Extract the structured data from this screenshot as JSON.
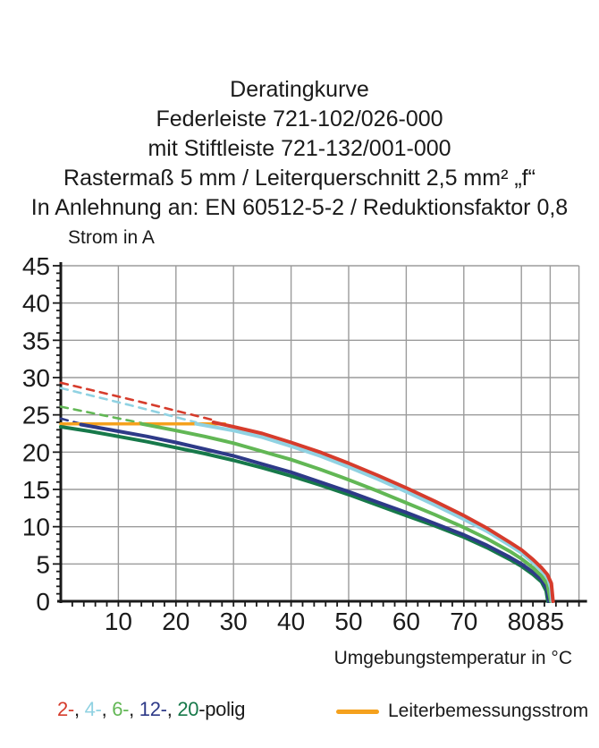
{
  "header": {
    "lines": [
      "Deratingkurve",
      "Federleiste 721-102/026-000",
      "mit Stiftleiste 721-132/001-000",
      "Rastermaß 5 mm / Leiterquerschnitt 2,5 mm² „f“",
      "In Anlehnung an: EN 60512-5-2 / Reduktionsfaktor 0,8"
    ]
  },
  "chart_data": {
    "type": "line",
    "title": "Deratingkurve",
    "xlabel": "Umgebungstemperatur in °C",
    "ylabel": "Strom in A",
    "xlim": [
      0,
      90
    ],
    "ylim": [
      0,
      45
    ],
    "x_ticks": [
      10,
      20,
      30,
      40,
      50,
      60,
      70,
      80,
      85
    ],
    "y_ticks": [
      0,
      5,
      10,
      15,
      20,
      25,
      30,
      35,
      40,
      45
    ],
    "x_gridlines": [
      10,
      20,
      30,
      40,
      50,
      60,
      70,
      80,
      85,
      90
    ],
    "y_gridlines": [
      5,
      10,
      15,
      20,
      25,
      30,
      35,
      40,
      45
    ],
    "grid_color": "#9b9b9b",
    "axis_color": "#1a1a1a",
    "grid_on": true,
    "legend_position": "bottom",
    "series": [
      {
        "name": "2-polig-dashed",
        "color": "#d63c2c",
        "dashed": true,
        "width": 2.6,
        "points": [
          [
            0,
            29.3
          ],
          [
            13,
            26.9
          ],
          [
            27,
            24.2
          ]
        ]
      },
      {
        "name": "4-polig-dashed",
        "color": "#90d2e2",
        "dashed": true,
        "width": 2.6,
        "points": [
          [
            0,
            28.6
          ],
          [
            12,
            26.3
          ],
          [
            23.5,
            24.0
          ]
        ]
      },
      {
        "name": "6-polig-dashed",
        "color": "#62b755",
        "dashed": true,
        "width": 2.6,
        "points": [
          [
            0,
            26.1
          ],
          [
            7,
            25.0
          ],
          [
            14,
            23.9
          ]
        ]
      },
      {
        "name": "12-polig-dashed",
        "color": "#2e3a88",
        "dashed": true,
        "width": 2.6,
        "points": [
          [
            0,
            24.5
          ],
          [
            3.5,
            23.8
          ]
        ]
      },
      {
        "name": "Leiterbemessungsstrom",
        "color": "#f5a11d",
        "dashed": false,
        "width": 3.5,
        "points": [
          [
            0,
            23.8
          ],
          [
            28.5,
            23.8
          ]
        ]
      },
      {
        "name": "20-polig",
        "color": "#17794a",
        "dashed": false,
        "width": 4,
        "points": [
          [
            0,
            23.4
          ],
          [
            5,
            22.8
          ],
          [
            10,
            22.1
          ],
          [
            15,
            21.4
          ],
          [
            20,
            20.6
          ],
          [
            25,
            19.8
          ],
          [
            30,
            18.9
          ],
          [
            35,
            17.9
          ],
          [
            40,
            16.8
          ],
          [
            45,
            15.6
          ],
          [
            50,
            14.3
          ],
          [
            55,
            12.9
          ],
          [
            60,
            11.5
          ],
          [
            65,
            10.1
          ],
          [
            70,
            8.6
          ],
          [
            74,
            7.2
          ],
          [
            78,
            5.6
          ],
          [
            80,
            4.7
          ],
          [
            82,
            3.6
          ],
          [
            83.5,
            2.6
          ],
          [
            84.3,
            1.4
          ],
          [
            84.6,
            0
          ]
        ]
      },
      {
        "name": "12-polig",
        "color": "#2e3a88",
        "dashed": false,
        "width": 4,
        "points": [
          [
            3.5,
            23.7
          ],
          [
            10,
            22.8
          ],
          [
            15,
            22.1
          ],
          [
            20,
            21.3
          ],
          [
            25,
            20.4
          ],
          [
            30,
            19.5
          ],
          [
            35,
            18.4
          ],
          [
            40,
            17.3
          ],
          [
            45,
            16.0
          ],
          [
            50,
            14.7
          ],
          [
            55,
            13.3
          ],
          [
            60,
            11.9
          ],
          [
            65,
            10.4
          ],
          [
            70,
            8.9
          ],
          [
            74,
            7.5
          ],
          [
            78,
            5.9
          ],
          [
            80,
            5.0
          ],
          [
            82,
            3.9
          ],
          [
            83.5,
            2.9
          ],
          [
            84.4,
            1.8
          ],
          [
            84.8,
            0
          ]
        ]
      },
      {
        "name": "6-polig",
        "color": "#62b755",
        "dashed": false,
        "width": 4,
        "points": [
          [
            14,
            23.8
          ],
          [
            20,
            22.9
          ],
          [
            25,
            22.1
          ],
          [
            30,
            21.2
          ],
          [
            35,
            20.1
          ],
          [
            40,
            19.0
          ],
          [
            45,
            17.7
          ],
          [
            50,
            16.3
          ],
          [
            55,
            14.8
          ],
          [
            60,
            13.2
          ],
          [
            65,
            11.6
          ],
          [
            70,
            9.9
          ],
          [
            74,
            8.4
          ],
          [
            78,
            6.7
          ],
          [
            80,
            5.7
          ],
          [
            82,
            4.5
          ],
          [
            83.5,
            3.4
          ],
          [
            84.5,
            2.3
          ],
          [
            85.1,
            0
          ]
        ]
      },
      {
        "name": "4-polig",
        "color": "#90d2e2",
        "dashed": false,
        "width": 4,
        "points": [
          [
            23.5,
            23.8
          ],
          [
            30,
            22.9
          ],
          [
            35,
            22.0
          ],
          [
            40,
            20.8
          ],
          [
            45,
            19.5
          ],
          [
            50,
            18.0
          ],
          [
            55,
            16.4
          ],
          [
            60,
            14.7
          ],
          [
            65,
            12.9
          ],
          [
            70,
            11.0
          ],
          [
            74,
            9.4
          ],
          [
            78,
            7.5
          ],
          [
            80,
            6.5
          ],
          [
            82,
            5.2
          ],
          [
            83.5,
            4.1
          ],
          [
            84.6,
            3.1
          ],
          [
            85.1,
            1.8
          ],
          [
            85.3,
            0
          ]
        ]
      },
      {
        "name": "2-polig",
        "color": "#d63c2c",
        "dashed": false,
        "width": 4,
        "points": [
          [
            26.5,
            24.0
          ],
          [
            30,
            23.4
          ],
          [
            35,
            22.5
          ],
          [
            40,
            21.3
          ],
          [
            45,
            20.0
          ],
          [
            50,
            18.5
          ],
          [
            55,
            16.9
          ],
          [
            60,
            15.2
          ],
          [
            65,
            13.4
          ],
          [
            70,
            11.5
          ],
          [
            74,
            9.8
          ],
          [
            78,
            7.9
          ],
          [
            80,
            6.9
          ],
          [
            82,
            5.6
          ],
          [
            83.5,
            4.5
          ],
          [
            84.5,
            3.6
          ],
          [
            85.2,
            2.4
          ],
          [
            85.5,
            0
          ]
        ]
      }
    ]
  },
  "legend": {
    "poles": {
      "items": [
        {
          "text": "2-",
          "color": "#d63c2c"
        },
        {
          "text": "4-",
          "color": "#90d2e2"
        },
        {
          "text": "6-",
          "color": "#62b755"
        },
        {
          "text": "12-",
          "color": "#2e3a88"
        },
        {
          "text": "20",
          "color": "#17794a"
        }
      ],
      "separator": ", ",
      "suffix": "-polig",
      "suffix_color": "#1a1a1a"
    },
    "rated": {
      "label": "Leiterbemessungsstrom",
      "color": "#f5a11d"
    }
  }
}
